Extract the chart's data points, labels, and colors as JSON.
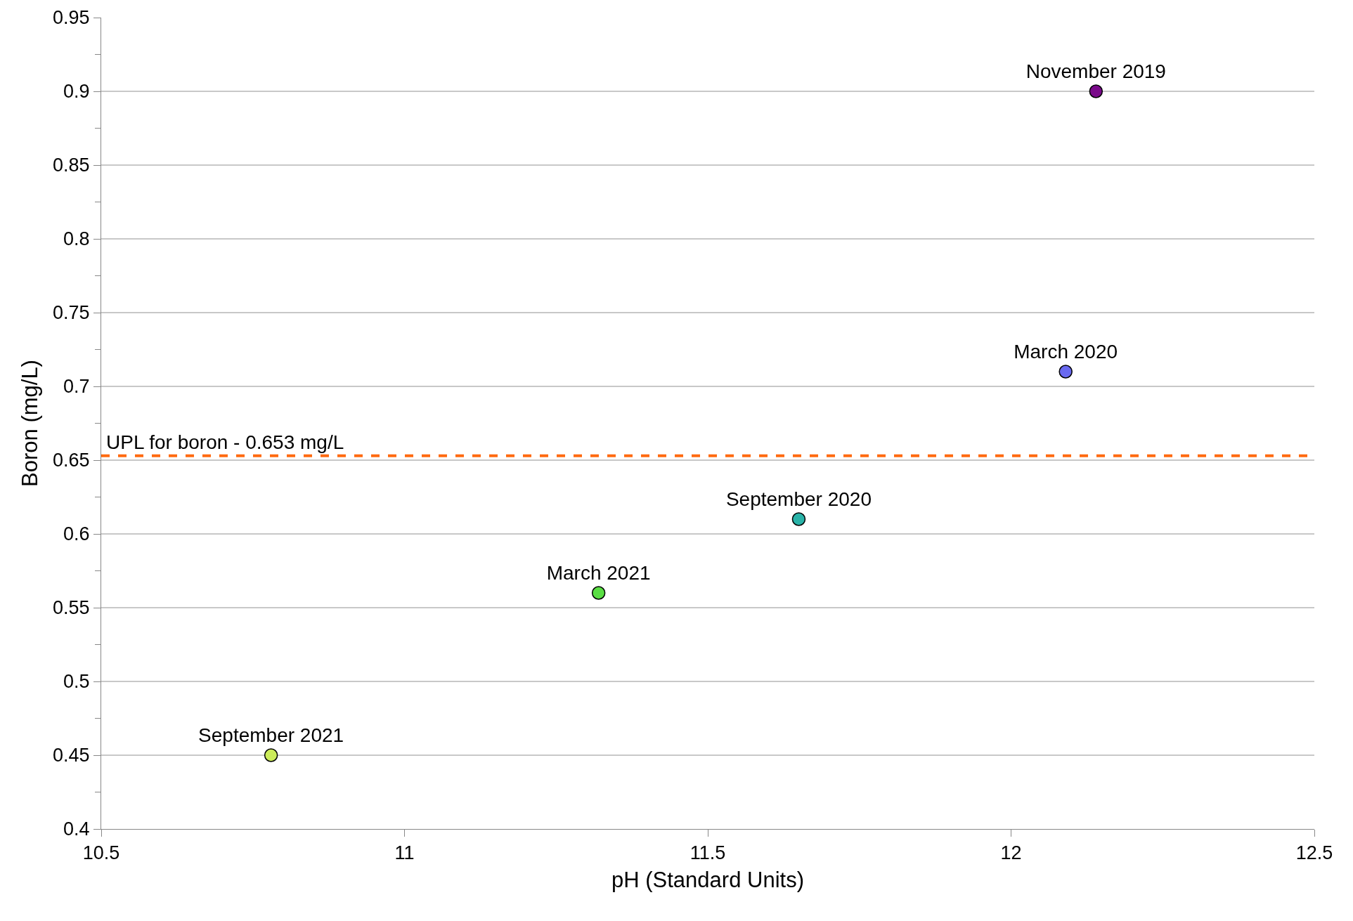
{
  "chart_data": {
    "type": "scatter",
    "xlabel": "pH (Standard Units)",
    "ylabel": "Boron (mg/L)",
    "xlim": [
      10.5,
      12.5
    ],
    "xticks": [
      10.5,
      11,
      11.5,
      12,
      12.5
    ],
    "ylim": [
      0.4,
      0.95
    ],
    "yticks": [
      {
        "value": 0.4,
        "label": "0.4"
      },
      {
        "value": 0.425,
        "label": null
      },
      {
        "value": 0.45,
        "label": "0.45"
      },
      {
        "value": 0.475,
        "label": null
      },
      {
        "value": 0.5,
        "label": "0.5"
      },
      {
        "value": 0.525,
        "label": null
      },
      {
        "value": 0.55,
        "label": "0.55"
      },
      {
        "value": 0.575,
        "label": null
      },
      {
        "value": 0.6,
        "label": "0.6"
      },
      {
        "value": 0.625,
        "label": null
      },
      {
        "value": 0.65,
        "label": "0.65"
      },
      {
        "value": 0.675,
        "label": null
      },
      {
        "value": 0.7,
        "label": "0.7"
      },
      {
        "value": 0.725,
        "label": null
      },
      {
        "value": 0.75,
        "label": "0.75"
      },
      {
        "value": 0.775,
        "label": null
      },
      {
        "value": 0.8,
        "label": "0.8"
      },
      {
        "value": 0.825,
        "label": null
      },
      {
        "value": 0.85,
        "label": "0.85"
      },
      {
        "value": 0.875,
        "label": null
      },
      {
        "value": 0.9,
        "label": "0.9"
      },
      {
        "value": 0.925,
        "label": null
      },
      {
        "value": 0.95,
        "label": "0.95"
      }
    ],
    "grid": "y",
    "legend": false,
    "marker": "circle",
    "series": [
      {
        "name": "November 2019",
        "color": "#7a0a8a",
        "x": [
          12.14
        ],
        "values": [
          0.9
        ]
      },
      {
        "name": "March 2020",
        "color": "#6a6af0",
        "x": [
          12.09
        ],
        "values": [
          0.71
        ]
      },
      {
        "name": "September 2020",
        "color": "#2ab3a8",
        "x": [
          11.65
        ],
        "values": [
          0.61
        ]
      },
      {
        "name": "March 2021",
        "color": "#5ade44",
        "x": [
          11.32
        ],
        "values": [
          0.56
        ]
      },
      {
        "name": "September 2021",
        "color": "#ccec5a",
        "x": [
          10.78
        ],
        "values": [
          0.45
        ]
      }
    ],
    "ref_lines": [
      {
        "axis": "y",
        "value": 0.653,
        "label": "UPL for boron - 0.653 mg/L",
        "color": "#ff6a10",
        "line_style": "dashed"
      }
    ]
  }
}
